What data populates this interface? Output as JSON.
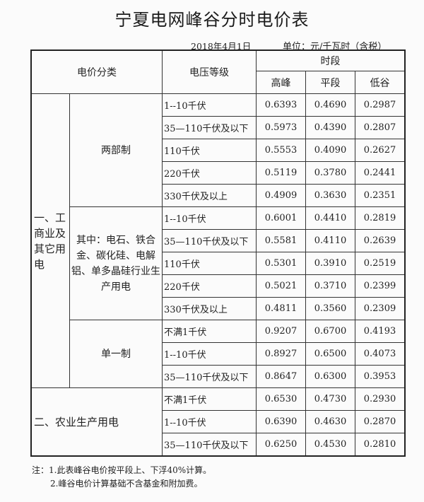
{
  "title": "宁夏电网峰谷分时电价表",
  "date": "2018年4月1日",
  "unit": "单位：元/千瓦时（含税）",
  "headers": {
    "category": "电价分类",
    "voltage": "电压等级",
    "period": "时段",
    "peak": "高峰",
    "flat": "平段",
    "valley": "低谷"
  },
  "groups": {
    "industrial": "一、工商业及其它用电",
    "two_part": "两部制",
    "special": "其中：电石、铁合金、碳化硅、电解铝、单多晶硅行业生产用电",
    "single": "单一制",
    "agriculture": "二、农业生产用电"
  },
  "rows": [
    {
      "voltage": "1--10千伏",
      "peak": "0.6393",
      "flat": "0.4690",
      "valley": "0.2987"
    },
    {
      "voltage": "35—110千伏及以下",
      "peak": "0.5973",
      "flat": "0.4390",
      "valley": "0.2807"
    },
    {
      "voltage": "110千伏",
      "peak": "0.5553",
      "flat": "0.4090",
      "valley": "0.2627"
    },
    {
      "voltage": "220千伏",
      "peak": "0.5119",
      "flat": "0.3780",
      "valley": "0.2441"
    },
    {
      "voltage": "330千伏及以上",
      "peak": "0.4909",
      "flat": "0.3630",
      "valley": "0.2351"
    },
    {
      "voltage": "1--10千伏",
      "peak": "0.6001",
      "flat": "0.4410",
      "valley": "0.2819"
    },
    {
      "voltage": "35—110千伏及以下",
      "peak": "0.5581",
      "flat": "0.4110",
      "valley": "0.2639"
    },
    {
      "voltage": "110千伏",
      "peak": "0.5301",
      "flat": "0.3910",
      "valley": "0.2519"
    },
    {
      "voltage": "220千伏",
      "peak": "0.5021",
      "flat": "0.3710",
      "valley": "0.2399"
    },
    {
      "voltage": "330千伏及以上",
      "peak": "0.4811",
      "flat": "0.3560",
      "valley": "0.2309"
    },
    {
      "voltage": "不满1千伏",
      "peak": "0.9207",
      "flat": "0.6700",
      "valley": "0.4193"
    },
    {
      "voltage": "1--10千伏",
      "peak": "0.8927",
      "flat": "0.6500",
      "valley": "0.4073"
    },
    {
      "voltage": "35—110千伏及以下",
      "peak": "0.8647",
      "flat": "0.6300",
      "valley": "0.3953"
    },
    {
      "voltage": "不满1千伏",
      "peak": "0.6530",
      "flat": "0.4730",
      "valley": "0.2930"
    },
    {
      "voltage": "1--10千伏",
      "peak": "0.6390",
      "flat": "0.4630",
      "valley": "0.2870"
    },
    {
      "voltage": "35—110千伏及以下",
      "peak": "0.6250",
      "flat": "0.4530",
      "valley": "0.2810"
    }
  ],
  "notes": [
    "注：1.此表峰谷电价按平段上、下浮40%计算。",
    "2.峰谷电价计算基础不含基金和附加费。"
  ]
}
